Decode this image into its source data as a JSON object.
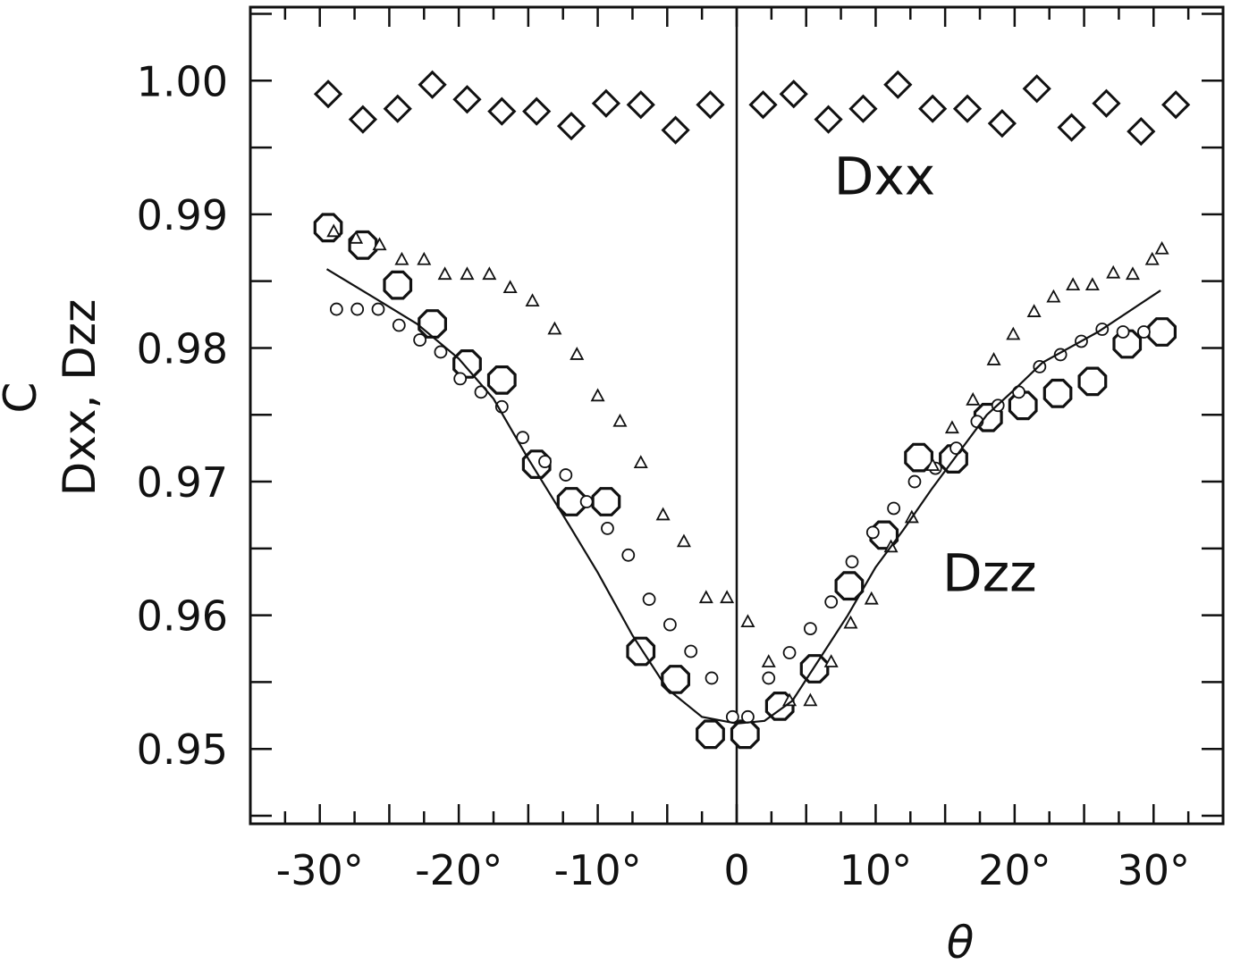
{
  "chart_data": {
    "type": "scatter",
    "xlabel": "θ",
    "ylabel": "C\nDxx, Dzz",
    "xlim": [
      -35,
      35
    ],
    "ylim": [
      0.9444,
      1.0055
    ],
    "grid": false,
    "legend": "none",
    "xticks": [
      {
        "value": -30,
        "label": "-30°"
      },
      {
        "value": -20,
        "label": "-20°"
      },
      {
        "value": -10,
        "label": "-10°"
      },
      {
        "value": 0,
        "label": "0"
      },
      {
        "value": 10,
        "label": "10°"
      },
      {
        "value": 20,
        "label": "20°"
      },
      {
        "value": 30,
        "label": "30°"
      }
    ],
    "yticks": [
      {
        "value": 1.0,
        "label": "1.00"
      },
      {
        "value": 0.99,
        "label": "0.99"
      },
      {
        "value": 0.98,
        "label": "0.98"
      },
      {
        "value": 0.97,
        "label": "0.97"
      },
      {
        "value": 0.96,
        "label": "0.96"
      },
      {
        "value": 0.95,
        "label": "0.95"
      }
    ],
    "annotations": [
      {
        "text": "Dxx",
        "x": 7.0,
        "y": 0.9915
      },
      {
        "text": "Dzz",
        "x": 14.8,
        "y": 0.9618
      }
    ],
    "series": [
      {
        "marker": "diamond",
        "points": [
          [
            -29.4,
            0.999
          ],
          [
            -26.9,
            0.9971
          ],
          [
            -24.4,
            0.9979
          ],
          [
            -21.9,
            0.9997
          ],
          [
            -19.4,
            0.9986
          ],
          [
            -16.9,
            0.9977
          ],
          [
            -14.4,
            0.9977
          ],
          [
            -11.9,
            0.9966
          ],
          [
            -9.4,
            0.9983
          ],
          [
            -6.9,
            0.9982
          ],
          [
            -4.4,
            0.9963
          ],
          [
            -1.9,
            0.9982
          ],
          [
            1.9,
            0.9982
          ],
          [
            4.1,
            0.999
          ],
          [
            6.6,
            0.9971
          ],
          [
            9.1,
            0.9979
          ],
          [
            11.6,
            0.9997
          ],
          [
            14.1,
            0.9979
          ],
          [
            16.6,
            0.9979
          ],
          [
            19.1,
            0.9968
          ],
          [
            21.6,
            0.9994
          ],
          [
            24.1,
            0.9965
          ],
          [
            26.6,
            0.9983
          ],
          [
            29.1,
            0.9962
          ],
          [
            31.6,
            0.9982
          ]
        ]
      },
      {
        "marker": "large-circle",
        "points": [
          [
            -29.4,
            0.989
          ],
          [
            -26.9,
            0.9877
          ],
          [
            -24.4,
            0.9847
          ],
          [
            -21.9,
            0.9818
          ],
          [
            -19.4,
            0.9788
          ],
          [
            -16.9,
            0.9776
          ],
          [
            -14.4,
            0.9713
          ],
          [
            -11.9,
            0.9685
          ],
          [
            -9.4,
            0.9685
          ],
          [
            -6.9,
            0.9573
          ],
          [
            -4.4,
            0.9552
          ],
          [
            -1.9,
            0.9511
          ],
          [
            0.6,
            0.9511
          ],
          [
            3.1,
            0.9532
          ],
          [
            5.6,
            0.956
          ],
          [
            8.1,
            0.9622
          ],
          [
            10.6,
            0.966
          ],
          [
            13.1,
            0.9718
          ],
          [
            15.6,
            0.9717
          ],
          [
            18.1,
            0.9748
          ],
          [
            20.6,
            0.9757
          ],
          [
            23.1,
            0.9766
          ],
          [
            25.6,
            0.9775
          ],
          [
            28.1,
            0.9803
          ],
          [
            30.6,
            0.9812
          ]
        ]
      },
      {
        "marker": "small-circle",
        "points": [
          [
            -28.8,
            0.9829
          ],
          [
            -27.3,
            0.9829
          ],
          [
            -25.8,
            0.9829
          ],
          [
            -24.3,
            0.9817
          ],
          [
            -22.8,
            0.9806
          ],
          [
            -21.3,
            0.9797
          ],
          [
            -19.9,
            0.9777
          ],
          [
            -18.4,
            0.9767
          ],
          [
            -16.9,
            0.9756
          ],
          [
            -15.4,
            0.9733
          ],
          [
            -13.8,
            0.9715
          ],
          [
            -12.3,
            0.9705
          ],
          [
            -10.8,
            0.9685
          ],
          [
            -9.3,
            0.9665
          ],
          [
            -7.8,
            0.9645
          ],
          [
            -6.3,
            0.9612
          ],
          [
            -4.8,
            0.9593
          ],
          [
            -3.3,
            0.9573
          ],
          [
            -1.8,
            0.9553
          ],
          [
            -0.3,
            0.9524
          ],
          [
            0.8,
            0.9524
          ],
          [
            2.3,
            0.9553
          ],
          [
            3.8,
            0.9572
          ],
          [
            5.3,
            0.959
          ],
          [
            6.8,
            0.961
          ],
          [
            8.3,
            0.964
          ],
          [
            9.8,
            0.9662
          ],
          [
            11.3,
            0.968
          ],
          [
            12.8,
            0.97
          ],
          [
            14.3,
            0.971
          ],
          [
            15.8,
            0.9725
          ],
          [
            17.3,
            0.9745
          ],
          [
            18.8,
            0.9757
          ],
          [
            20.3,
            0.9767
          ],
          [
            21.8,
            0.9786
          ],
          [
            23.3,
            0.9795
          ],
          [
            24.8,
            0.9805
          ],
          [
            26.3,
            0.9814
          ],
          [
            27.8,
            0.9812
          ],
          [
            29.3,
            0.9812
          ]
        ]
      },
      {
        "marker": "triangle",
        "points": [
          [
            -29.0,
            0.9887
          ],
          [
            -27.4,
            0.9882
          ],
          [
            -25.7,
            0.9877
          ],
          [
            -24.1,
            0.9866
          ],
          [
            -22.5,
            0.9866
          ],
          [
            -21.0,
            0.9855
          ],
          [
            -19.4,
            0.9855
          ],
          [
            -17.8,
            0.9855
          ],
          [
            -16.3,
            0.9845
          ],
          [
            -14.7,
            0.9835
          ],
          [
            -13.1,
            0.9814
          ],
          [
            -11.5,
            0.9795
          ],
          [
            -10.0,
            0.9764
          ],
          [
            -8.4,
            0.9745
          ],
          [
            -6.9,
            0.9714
          ],
          [
            -5.3,
            0.9675
          ],
          [
            -3.8,
            0.9655
          ],
          [
            -2.2,
            0.9613
          ],
          [
            -0.7,
            0.9613
          ],
          [
            0.8,
            0.9595
          ],
          [
            2.3,
            0.9565
          ],
          [
            3.8,
            0.9536
          ],
          [
            5.3,
            0.9536
          ],
          [
            6.8,
            0.9565
          ],
          [
            8.2,
            0.9594
          ],
          [
            9.7,
            0.9612
          ],
          [
            11.1,
            0.9651
          ],
          [
            12.6,
            0.9673
          ],
          [
            14.1,
            0.9712
          ],
          [
            15.5,
            0.974
          ],
          [
            17.0,
            0.9761
          ],
          [
            18.5,
            0.9791
          ],
          [
            19.9,
            0.981
          ],
          [
            21.4,
            0.9827
          ],
          [
            22.8,
            0.9838
          ],
          [
            24.2,
            0.9847
          ],
          [
            25.6,
            0.9847
          ],
          [
            27.1,
            0.9856
          ],
          [
            28.5,
            0.9855
          ],
          [
            29.9,
            0.9866
          ],
          [
            30.6,
            0.9874
          ]
        ]
      },
      {
        "marker": "line",
        "points": [
          [
            -29.5,
            0.9859
          ],
          [
            -26.0,
            0.9837
          ],
          [
            -23.0,
            0.9818
          ],
          [
            -20.0,
            0.9792
          ],
          [
            -17.5,
            0.9762
          ],
          [
            -15.0,
            0.9717
          ],
          [
            -12.5,
            0.9675
          ],
          [
            -10.0,
            0.9632
          ],
          [
            -7.5,
            0.9585
          ],
          [
            -5.0,
            0.9545
          ],
          [
            -2.5,
            0.9524
          ],
          [
            0.0,
            0.9519
          ],
          [
            2.0,
            0.9521
          ],
          [
            4.0,
            0.9536
          ],
          [
            6.0,
            0.9568
          ],
          [
            8.0,
            0.96
          ],
          [
            10.0,
            0.9636
          ],
          [
            12.0,
            0.9664
          ],
          [
            14.0,
            0.9694
          ],
          [
            16.0,
            0.9722
          ],
          [
            18.0,
            0.975
          ],
          [
            20.0,
            0.9769
          ],
          [
            22.0,
            0.9789
          ],
          [
            26.0,
            0.9812
          ],
          [
            30.5,
            0.9843
          ]
        ]
      }
    ]
  }
}
